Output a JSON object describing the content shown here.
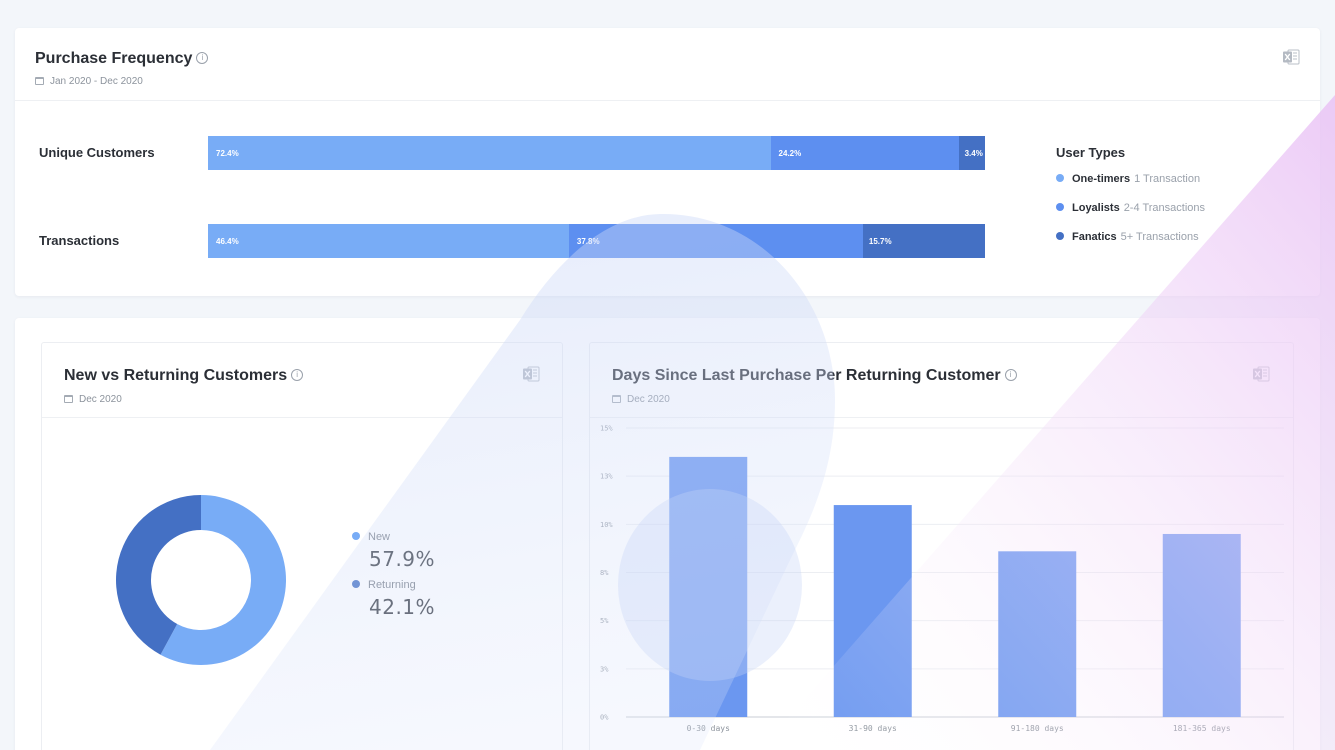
{
  "purchase_frequency": {
    "title": "Purchase Frequency",
    "info_icon": "i",
    "date_range": "Jan 2020 - Dec 2020",
    "rows": [
      {
        "label": "Unique Customers",
        "segments": [
          {
            "value": 72.4,
            "label": "72.4%"
          },
          {
            "value": 24.2,
            "label": "24.2%"
          },
          {
            "value": 3.4,
            "label": "3.4%"
          }
        ]
      },
      {
        "label": "Transactions",
        "segments": [
          {
            "value": 46.4,
            "label": "46.4%"
          },
          {
            "value": 37.8,
            "label": "37.8%"
          },
          {
            "value": 15.7,
            "label": "15.7%"
          }
        ]
      }
    ],
    "legend": {
      "title": "User Types",
      "items": [
        {
          "name": "One-timers",
          "desc": "1 Transaction",
          "color": "#78acf6"
        },
        {
          "name": "Loyalists",
          "desc": "2-4 Transactions",
          "color": "#5d8ff0"
        },
        {
          "name": "Fanatics",
          "desc": "5+ Transactions",
          "color": "#4470c4"
        }
      ]
    }
  },
  "new_vs_returning": {
    "title": "New vs Returning Customers",
    "info_icon": "i",
    "date": "Dec 2020",
    "items": [
      {
        "label": "New",
        "value": "57.9%",
        "percent": 57.9,
        "color": "#78acf6"
      },
      {
        "label": "Returning",
        "value": "42.1%",
        "percent": 42.1,
        "color": "#4470c4"
      }
    ]
  },
  "days_since_last_purchase": {
    "title": "Days Since Last Purchase Per Returning Customer",
    "info_icon": "i",
    "date": "Dec 2020"
  },
  "chart_data": {
    "type": "bar",
    "categories": [
      "0-30 days",
      "31-90 days",
      "91-180 days",
      "181-365 days"
    ],
    "values": [
      13.5,
      11.0,
      8.6,
      9.5
    ],
    "ylim": [
      0,
      15
    ],
    "yticks": [
      0,
      2.5,
      5,
      7.5,
      10,
      12.5,
      15
    ],
    "ytick_labels": [
      "0%",
      "3%",
      "5%",
      "8%",
      "10%",
      "13%",
      "15%"
    ],
    "grid": true,
    "color": "#6b97f0"
  },
  "icons": {
    "export": "excel-export-icon",
    "calendar": "calendar-icon",
    "info": "info-icon"
  }
}
